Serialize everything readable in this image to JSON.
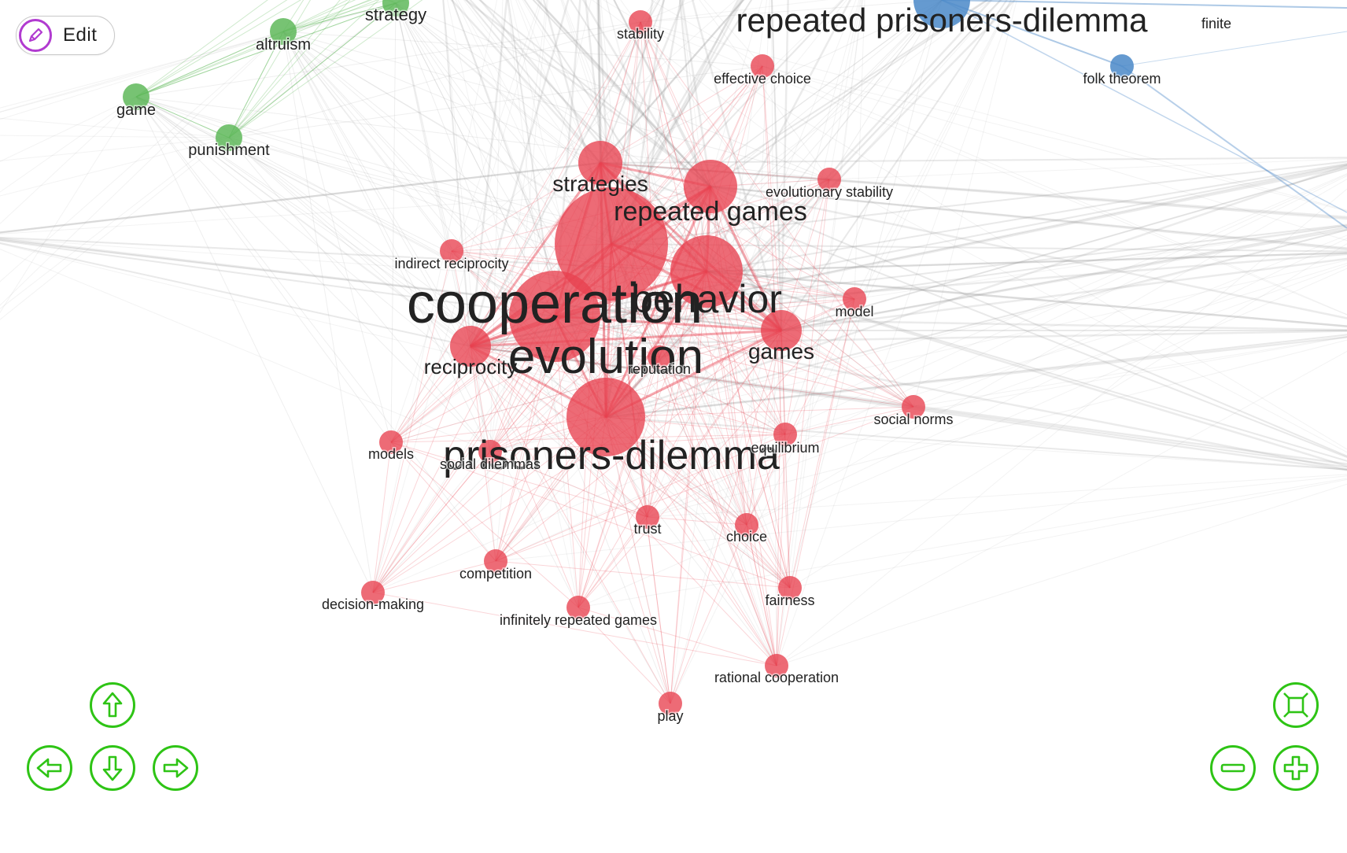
{
  "toolbar": {
    "edit_label": "Edit"
  },
  "colors": {
    "cluster_red": "#e8414f",
    "cluster_green": "#5fb85a",
    "cluster_blue": "#4a88c8",
    "edge_gray": "#9a9a9a",
    "nav_green": "#2ec415",
    "edit_purple": "#b13bd0"
  },
  "controls": {
    "pan_up": "arrow-up-icon",
    "pan_down": "arrow-down-icon",
    "pan_left": "arrow-left-icon",
    "pan_right": "arrow-right-icon",
    "zoom_in": "plus-icon",
    "zoom_out": "minus-icon",
    "fit": "fit-screen-icon"
  },
  "network": {
    "nodes": [
      {
        "id": "cooperation",
        "label": "cooperation",
        "cluster": "red"
      },
      {
        "id": "evolution",
        "label": "evolution",
        "cluster": "red"
      },
      {
        "id": "behavior",
        "label": "behavior",
        "cluster": "red"
      },
      {
        "id": "prisoners-dilemma",
        "label": "prisoners-dilemma",
        "cluster": "red"
      },
      {
        "id": "repeated-games",
        "label": "repeated games",
        "cluster": "red"
      },
      {
        "id": "strategies",
        "label": "strategies",
        "cluster": "red"
      },
      {
        "id": "games",
        "label": "games",
        "cluster": "red"
      },
      {
        "id": "reciprocity",
        "label": "reciprocity",
        "cluster": "red"
      },
      {
        "id": "reputation",
        "label": "reputation",
        "cluster": "red"
      },
      {
        "id": "indirect-reciprocity",
        "label": "indirect reciprocity",
        "cluster": "red"
      },
      {
        "id": "stability",
        "label": "stability",
        "cluster": "red"
      },
      {
        "id": "effective-choice",
        "label": "effective choice",
        "cluster": "red"
      },
      {
        "id": "evolutionary-stability",
        "label": "evolutionary stability",
        "cluster": "red"
      },
      {
        "id": "model",
        "label": "model",
        "cluster": "red"
      },
      {
        "id": "social-norms",
        "label": "social norms",
        "cluster": "red"
      },
      {
        "id": "equilibrium",
        "label": "equilibrium",
        "cluster": "red"
      },
      {
        "id": "models",
        "label": "models",
        "cluster": "red"
      },
      {
        "id": "social-dilemmas",
        "label": "social dilemmas",
        "cluster": "red"
      },
      {
        "id": "trust",
        "label": "trust",
        "cluster": "red"
      },
      {
        "id": "choice",
        "label": "choice",
        "cluster": "red"
      },
      {
        "id": "competition",
        "label": "competition",
        "cluster": "red"
      },
      {
        "id": "decision-making",
        "label": "decision-making",
        "cluster": "red"
      },
      {
        "id": "infinitely-repeated-games",
        "label": "infinitely repeated games",
        "cluster": "red"
      },
      {
        "id": "fairness",
        "label": "fairness",
        "cluster": "red"
      },
      {
        "id": "rational-cooperation",
        "label": "rational cooperation",
        "cluster": "red"
      },
      {
        "id": "play",
        "label": "play",
        "cluster": "red"
      },
      {
        "id": "strategy",
        "label": "strategy",
        "cluster": "green"
      },
      {
        "id": "altruism",
        "label": "altruism",
        "cluster": "green"
      },
      {
        "id": "game",
        "label": "game",
        "cluster": "green"
      },
      {
        "id": "punishment",
        "label": "punishment",
        "cluster": "green"
      },
      {
        "id": "repeated-prisoners-dilemma",
        "label": "repeated prisoners-dilemma",
        "cluster": "blue"
      },
      {
        "id": "folk-theorem",
        "label": "folk theorem",
        "cluster": "blue"
      },
      {
        "id": "finite",
        "label": "finite",
        "cluster": "blue"
      }
    ]
  }
}
